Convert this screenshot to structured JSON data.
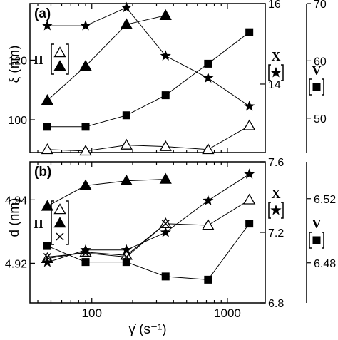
{
  "chart_data": [
    {
      "panel": "(a)",
      "type": "scatter",
      "x_scale": "log",
      "xlim": [
        35,
        1900
      ],
      "xticks": [
        100,
        1000
      ],
      "left_axis": {
        "label": "ξ (nm)",
        "ylim": [
          89,
          139
        ],
        "ticks": [
          100,
          120
        ],
        "legend_prefix": "II",
        "legend_symbols": [
          "open-triangle",
          "filled-triangle"
        ]
      },
      "right_axis_1": {
        "label": "X",
        "symbol": "star",
        "ylim": [
          12.3,
          16.0
        ],
        "ticks": [
          14,
          16
        ]
      },
      "right_axis_2": {
        "label": "V",
        "symbol": "filled-square",
        "ylim": [
          44,
          70
        ],
        "ticks": [
          50,
          60,
          70
        ]
      },
      "series": [
        {
          "axis": "left",
          "marker": "filled-triangle",
          "x": [
            47,
            90,
            180,
            350
          ],
          "y": [
            106.5,
            118,
            132,
            135
          ]
        },
        {
          "axis": "left",
          "marker": "open-triangle",
          "x": [
            47,
            90,
            180,
            350,
            720,
            1450
          ],
          "y": [
            90,
            89.5,
            91.5,
            91,
            90,
            98
          ]
        },
        {
          "axis": "right1",
          "marker": "star",
          "x": [
            47,
            90,
            180,
            350,
            720,
            1450
          ],
          "y": [
            15.45,
            15.45,
            15.9,
            14.7,
            14.15,
            13.45
          ]
        },
        {
          "axis": "right2",
          "marker": "filled-square",
          "x": [
            47,
            90,
            180,
            350,
            720,
            1450
          ],
          "y": [
            48.5,
            48.5,
            50.5,
            54,
            59.5,
            65
          ]
        }
      ]
    },
    {
      "panel": "(b)",
      "type": "scatter",
      "x_scale": "log",
      "xlim": [
        35,
        1900
      ],
      "xticks": [
        100,
        1000
      ],
      "xlabel": "γ̇ (s⁻¹)",
      "left_axis": {
        "label": "d (nm)",
        "ylim": [
          4.9075,
          4.952
        ],
        "ticks": [
          4.92,
          4.94
        ],
        "legend_prefix": "II",
        "legend_symbols": [
          "open-triangle",
          "filled-triangle",
          "cross"
        ]
      },
      "right_axis_1": {
        "label": "X",
        "symbol": "star",
        "ylim": [
          6.8,
          7.6
        ],
        "ticks": [
          6.8,
          7.2,
          7.6
        ]
      },
      "right_axis_2": {
        "label": "V",
        "symbol": "filled-square",
        "ylim": [
          6.455,
          6.543
        ],
        "ticks": [
          6.48,
          6.52
        ]
      },
      "series": [
        {
          "axis": "left",
          "marker": "filled-triangle",
          "x": [
            47,
            90,
            180,
            350
          ],
          "y": [
            4.938,
            4.9445,
            4.946,
            4.9465
          ]
        },
        {
          "axis": "left",
          "marker": "open-triangle",
          "x": [
            47,
            90,
            180,
            350,
            720,
            1450
          ],
          "y": [
            4.9215,
            4.9235,
            4.9225,
            4.9325,
            4.932,
            4.94
          ]
        },
        {
          "axis": "left",
          "marker": "cross",
          "x": [
            47,
            90,
            180,
            350
          ],
          "y": [
            4.922,
            4.9232,
            4.922,
            4.9325
          ]
        },
        {
          "axis": "right1",
          "marker": "star",
          "x": [
            47,
            90,
            180,
            350,
            720,
            1450
          ],
          "y": [
            7.03,
            7.1,
            7.1,
            7.2,
            7.38,
            7.53
          ]
        },
        {
          "axis": "right2",
          "marker": "filled-square",
          "x": [
            47,
            90,
            180,
            350,
            720,
            1450
          ],
          "y": [
            6.4905,
            6.4805,
            6.4805,
            6.4715,
            6.4695,
            6.5045
          ]
        }
      ]
    }
  ]
}
